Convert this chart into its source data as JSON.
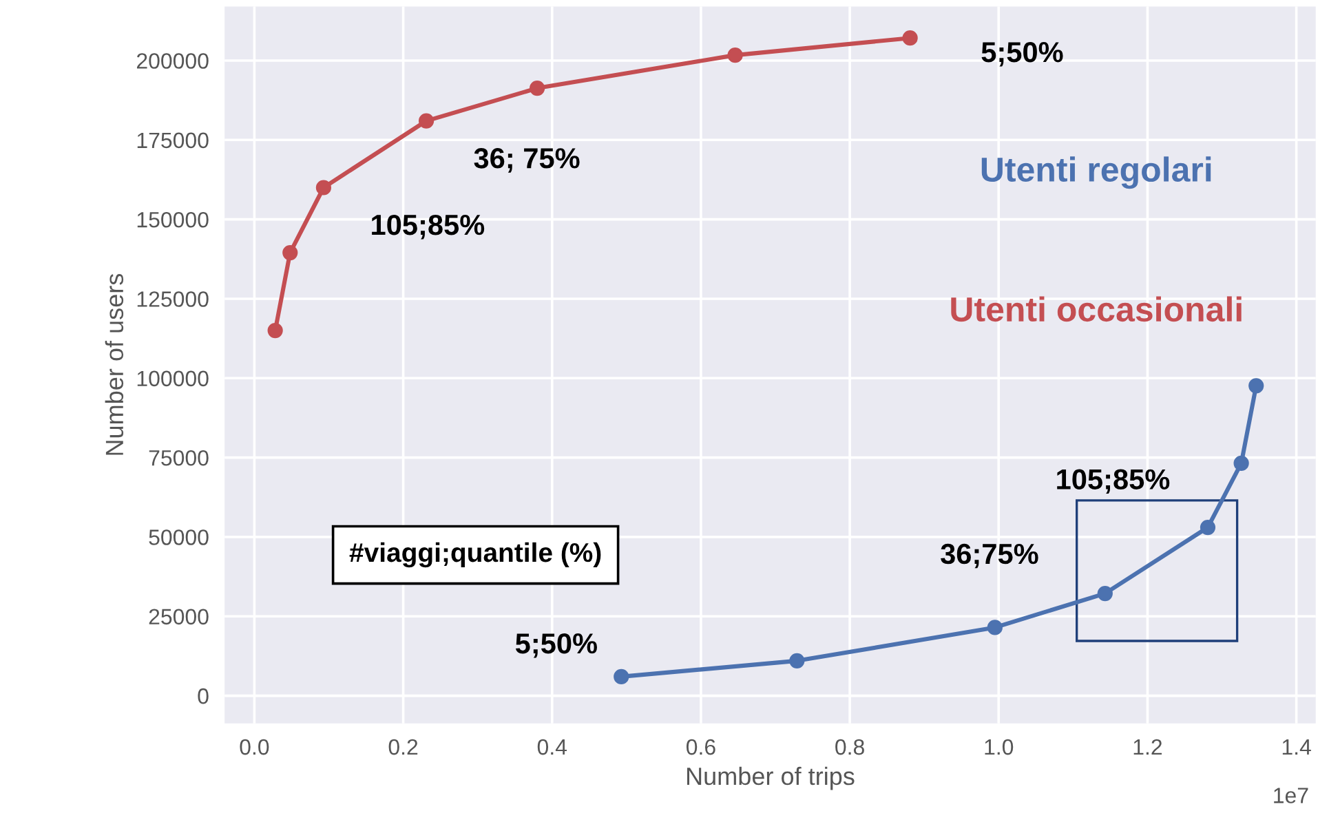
{
  "chart_data": {
    "type": "line",
    "xlabel": "Number of trips",
    "ylabel": "Number of users",
    "series": [
      {
        "name": "Utenti occasionali",
        "color": "#c44e52",
        "x": [
          0.028,
          0.048,
          0.093,
          0.231,
          0.38,
          0.646,
          0.881
        ],
        "values": [
          115000,
          139500,
          160000,
          181000,
          191300,
          201700,
          207100
        ]
      },
      {
        "name": "Utenti regolari",
        "color": "#4c72b0",
        "x": [
          0.493,
          0.729,
          0.995,
          1.143,
          1.281,
          1.326,
          1.346
        ],
        "values": [
          6000,
          11000,
          21500,
          32200,
          53000,
          73200,
          97600
        ]
      }
    ],
    "xlim": [
      -0.04,
      1.426
    ],
    "ylim": [
      -8700,
      217000
    ],
    "xticks": [
      {
        "value": 0,
        "label": "0.0"
      },
      0.2,
      0.4,
      0.6,
      0.8,
      {
        "value": 1,
        "label": "1.0"
      },
      1.2,
      1.4
    ],
    "yticks": [
      0,
      25000,
      50000,
      75000,
      100000,
      125000,
      150000,
      175000,
      200000
    ],
    "annotations": [
      "5;50%",
      "36; 75%",
      "105;85%",
      "105;85%",
      "36;75%",
      "5;50%",
      "#viaggi;quantile (%)",
      "1e7"
    ],
    "grid": true,
    "legend": false,
    "marker": "circle",
    "line_style": "solid"
  }
}
